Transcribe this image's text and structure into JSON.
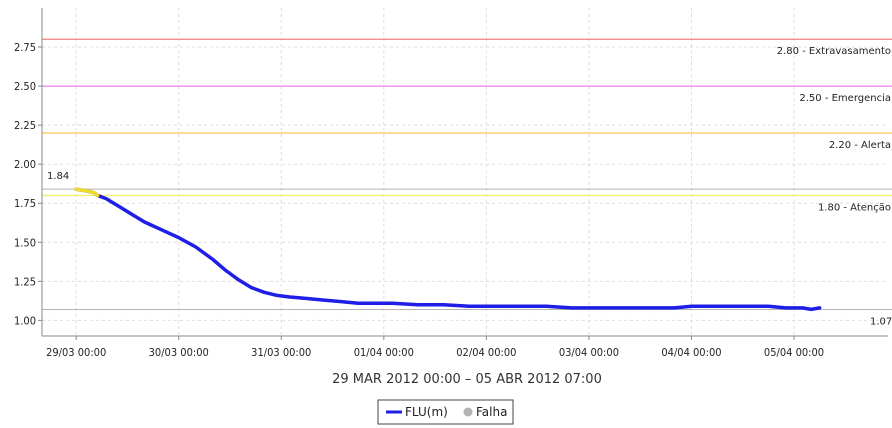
{
  "chart_data": {
    "type": "line",
    "title": "",
    "subtitle": "29 MAR 2012 00:00 – 05 ABR 2012 07:00",
    "xlabel": "",
    "ylabel": "",
    "ylim": [
      0.9,
      3.0
    ],
    "y_ticks": [
      "1.00",
      "1.25",
      "1.50",
      "1.75",
      "2.00",
      "2.25",
      "2.50",
      "2.75"
    ],
    "x_ticks": [
      {
        "label": "29/03 00:00",
        "t": 0
      },
      {
        "label": "30/03 00:00",
        "t": 24
      },
      {
        "label": "31/03 00:00",
        "t": 48
      },
      {
        "label": "01/04 00:00",
        "t": 72
      },
      {
        "label": "02/04 00:00",
        "t": 96
      },
      {
        "label": "03/04 00:00",
        "t": 120
      },
      {
        "label": "04/04 00:00",
        "t": 144
      },
      {
        "label": "05/04 00:00",
        "t": 168
      }
    ],
    "xlim": [
      -8,
      190
    ],
    "grid": true,
    "thresholds": [
      {
        "value": 2.8,
        "label": "2.80 - Extravasamento",
        "color": "#f08080"
      },
      {
        "value": 2.5,
        "label": "2.50 - Emergencia",
        "color": "#ee82ee"
      },
      {
        "value": 2.2,
        "label": "2.20 - Alerta",
        "color": "#ffc864"
      },
      {
        "value": 1.8,
        "label": "1.80 - Atenção",
        "color": "#f0f078"
      }
    ],
    "max_marker": {
      "value": 1.84,
      "label": "1.84"
    },
    "min_marker": {
      "value": 1.07,
      "label": "1.07"
    },
    "series": [
      {
        "name": "FLU(m)",
        "color": "#1e1ee6",
        "x": [
          0,
          2,
          4,
          5,
          7,
          10,
          13,
          16,
          20,
          24,
          28,
          32,
          35,
          38,
          41,
          44,
          47,
          50,
          54,
          58,
          62,
          66,
          70,
          74,
          80,
          86,
          92,
          96,
          104,
          110,
          116,
          124,
          132,
          140,
          144,
          150,
          156,
          162,
          166,
          170,
          172,
          174
        ],
        "y": [
          1.84,
          1.83,
          1.82,
          1.8,
          1.78,
          1.73,
          1.68,
          1.63,
          1.58,
          1.53,
          1.47,
          1.39,
          1.32,
          1.26,
          1.21,
          1.18,
          1.16,
          1.15,
          1.14,
          1.13,
          1.12,
          1.11,
          1.11,
          1.11,
          1.1,
          1.1,
          1.09,
          1.09,
          1.09,
          1.09,
          1.08,
          1.08,
          1.08,
          1.08,
          1.09,
          1.09,
          1.09,
          1.09,
          1.08,
          1.08,
          1.07,
          1.08
        ]
      },
      {
        "name": "Falha",
        "color": "#b4b4b4",
        "x": [],
        "y": []
      }
    ],
    "highlight_segment": {
      "x_from": 0,
      "x_to": 5,
      "color": "#f0dc28"
    },
    "legend": {
      "placement": "bottom-center",
      "items": [
        {
          "label": "FLU(m)",
          "type": "line",
          "color": "#1e1ee6"
        },
        {
          "label": "Falha",
          "type": "dot",
          "color": "#b4b4b4"
        }
      ]
    }
  }
}
